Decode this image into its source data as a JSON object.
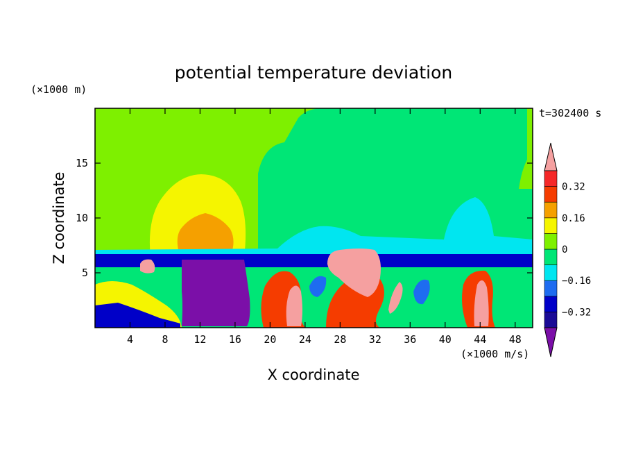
{
  "chart_data": {
    "type": "heatmap",
    "title": "potential temperature deviation",
    "xlabel": "X coordinate",
    "ylabel": "Z coordinate",
    "x_unit": "(×1000 m/s)",
    "y_unit": "(×1000 m)",
    "time_label": "t=302400 s",
    "xlim": [
      0,
      50
    ],
    "ylim": [
      0,
      20
    ],
    "x_ticks": [
      4,
      8,
      12,
      16,
      20,
      24,
      28,
      32,
      36,
      40,
      44,
      48
    ],
    "y_ticks": [
      5,
      10,
      15
    ],
    "colorbar": {
      "levels": [
        -0.48,
        -0.4,
        -0.32,
        -0.24,
        -0.16,
        -0.08,
        0,
        0.08,
        0.16,
        0.24,
        0.32,
        0.4
      ],
      "labels": [
        "0.32",
        "0.16",
        "0",
        "−0.16",
        "−0.32"
      ],
      "label_values": [
        0.32,
        0.16,
        0,
        -0.16,
        -0.32
      ],
      "colors": [
        "#7b0fa8",
        "#1a0a96",
        "#0000c8",
        "#1e6cf0",
        "#00e6f0",
        "#00e676",
        "#7ef000",
        "#f5f500",
        "#f5a000",
        "#f53c00",
        "#f52828",
        "#f5a0a0"
      ]
    },
    "regions": [
      {
        "value": 0.04,
        "x": [
          0,
          50
        ],
        "z": [
          6.8,
          20
        ],
        "note": "upper background (light green)"
      },
      {
        "value": -0.02,
        "x": [
          22,
          49
        ],
        "z": [
          6.8,
          19.5
        ],
        "note": "upper right band (green)"
      },
      {
        "value": 0.12,
        "x": [
          6.3,
          17.5
        ],
        "z": [
          7.2,
          13.9
        ],
        "note": "warm dome (yellow)"
      },
      {
        "value": 0.2,
        "x": [
          9.6,
          15.7
        ],
        "z": [
          7.2,
          10.5
        ],
        "note": "warm core (orange)"
      },
      {
        "value": -0.12,
        "x": [
          39.5,
          46.5
        ],
        "z": [
          6.5,
          11.9
        ],
        "note": "cool dome (cyan)"
      },
      {
        "value": -0.44,
        "x": [
          10.2,
          17.8
        ],
        "z": [
          0,
          6.3
        ],
        "note": "cold pool (purple)"
      },
      {
        "value": 0.44,
        "x": [
          26.5,
          32.7
        ],
        "z": [
          2.9,
          7.4
        ],
        "note": "warm plume (pink)"
      }
    ]
  }
}
